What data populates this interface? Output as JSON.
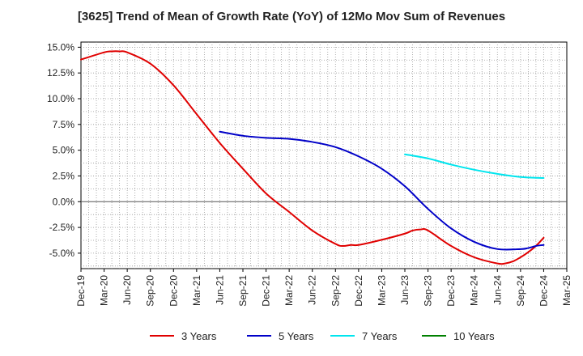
{
  "chart_data": {
    "type": "line",
    "title": "[3625]  Trend of Mean of Growth Rate (YoY) of 12Mo Mov Sum of Revenues",
    "xlabel": "",
    "ylabel": "",
    "ylim": [
      -6.5,
      15.5
    ],
    "y_ticks": [
      15.0,
      12.5,
      10.0,
      7.5,
      5.0,
      2.5,
      0.0,
      -2.5,
      -5.0
    ],
    "y_tick_labels": [
      "15.0%",
      "12.5%",
      "10.0%",
      "7.5%",
      "5.0%",
      "2.5%",
      "0.0%",
      "-2.5%",
      "-5.0%"
    ],
    "x_tick_labels": [
      "Dec-19",
      "Mar-20",
      "Jun-20",
      "Sep-20",
      "Dec-20",
      "Mar-21",
      "Jun-21",
      "Sep-21",
      "Dec-21",
      "Mar-22",
      "Jun-22",
      "Sep-22",
      "Dec-22",
      "Mar-23",
      "Jun-23",
      "Sep-23",
      "Dec-23",
      "Mar-24",
      "Jun-24",
      "Sep-24",
      "Dec-24",
      "Mar-25"
    ],
    "x_months_total": 63,
    "grid": true,
    "legend_position": "bottom",
    "series": [
      {
        "name": "3 Years",
        "color": "#e00000",
        "x": [
          0,
          3,
          4,
          5,
          6,
          9,
          12,
          15,
          18,
          21,
          24,
          27,
          30,
          33,
          34,
          35,
          36,
          39,
          42,
          43,
          44,
          45,
          48,
          51,
          54,
          55,
          56,
          57,
          58,
          59,
          60
        ],
        "y": [
          13.8,
          14.5,
          14.6,
          14.6,
          14.5,
          13.4,
          11.3,
          8.5,
          5.7,
          3.2,
          0.8,
          -1.0,
          -2.8,
          -4.1,
          -4.3,
          -4.2,
          -4.2,
          -3.7,
          -3.1,
          -2.8,
          -2.7,
          -2.8,
          -4.3,
          -5.4,
          -6.0,
          -6.0,
          -5.8,
          -5.4,
          -4.9,
          -4.3,
          -3.5
        ]
      },
      {
        "name": "5 Years",
        "color": "#0000c8",
        "x": [
          18,
          21,
          24,
          27,
          30,
          33,
          36,
          39,
          42,
          45,
          48,
          51,
          54,
          57,
          58,
          59,
          60
        ],
        "y": [
          6.8,
          6.4,
          6.2,
          6.1,
          5.8,
          5.3,
          4.4,
          3.2,
          1.5,
          -0.7,
          -2.6,
          -3.9,
          -4.6,
          -4.6,
          -4.5,
          -4.3,
          -4.2
        ]
      },
      {
        "name": "7 Years",
        "color": "#00e5ee",
        "x": [
          42,
          45,
          48,
          51,
          54,
          57,
          60
        ],
        "y": [
          4.6,
          4.2,
          3.6,
          3.1,
          2.7,
          2.4,
          2.3
        ]
      },
      {
        "name": "10 Years",
        "color": "#008000",
        "x": [],
        "y": []
      }
    ]
  }
}
